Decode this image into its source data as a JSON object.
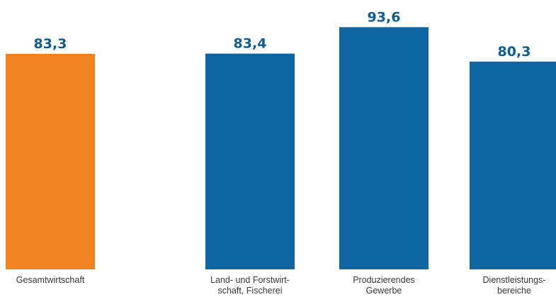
{
  "chart_data": {
    "type": "bar",
    "categories": [
      [
        "Gesamtwirtschaft"
      ],
      [
        "Land- und Forstwirt-",
        "schaft, Fischerei"
      ],
      [
        "Produzierendes",
        "Gewerbe"
      ],
      [
        "Dienstleistungs-",
        "bereiche"
      ]
    ],
    "values": [
      83.3,
      83.4,
      93.6,
      80.3
    ],
    "value_labels": [
      "83,3",
      "83,4",
      "93,6",
      "80,3"
    ],
    "bar_colors": [
      "#f28321",
      "#0d65a1",
      "#0d65a1",
      "#0d65a1"
    ],
    "ylim": [
      0,
      100
    ],
    "grid": false,
    "legend": "none"
  }
}
